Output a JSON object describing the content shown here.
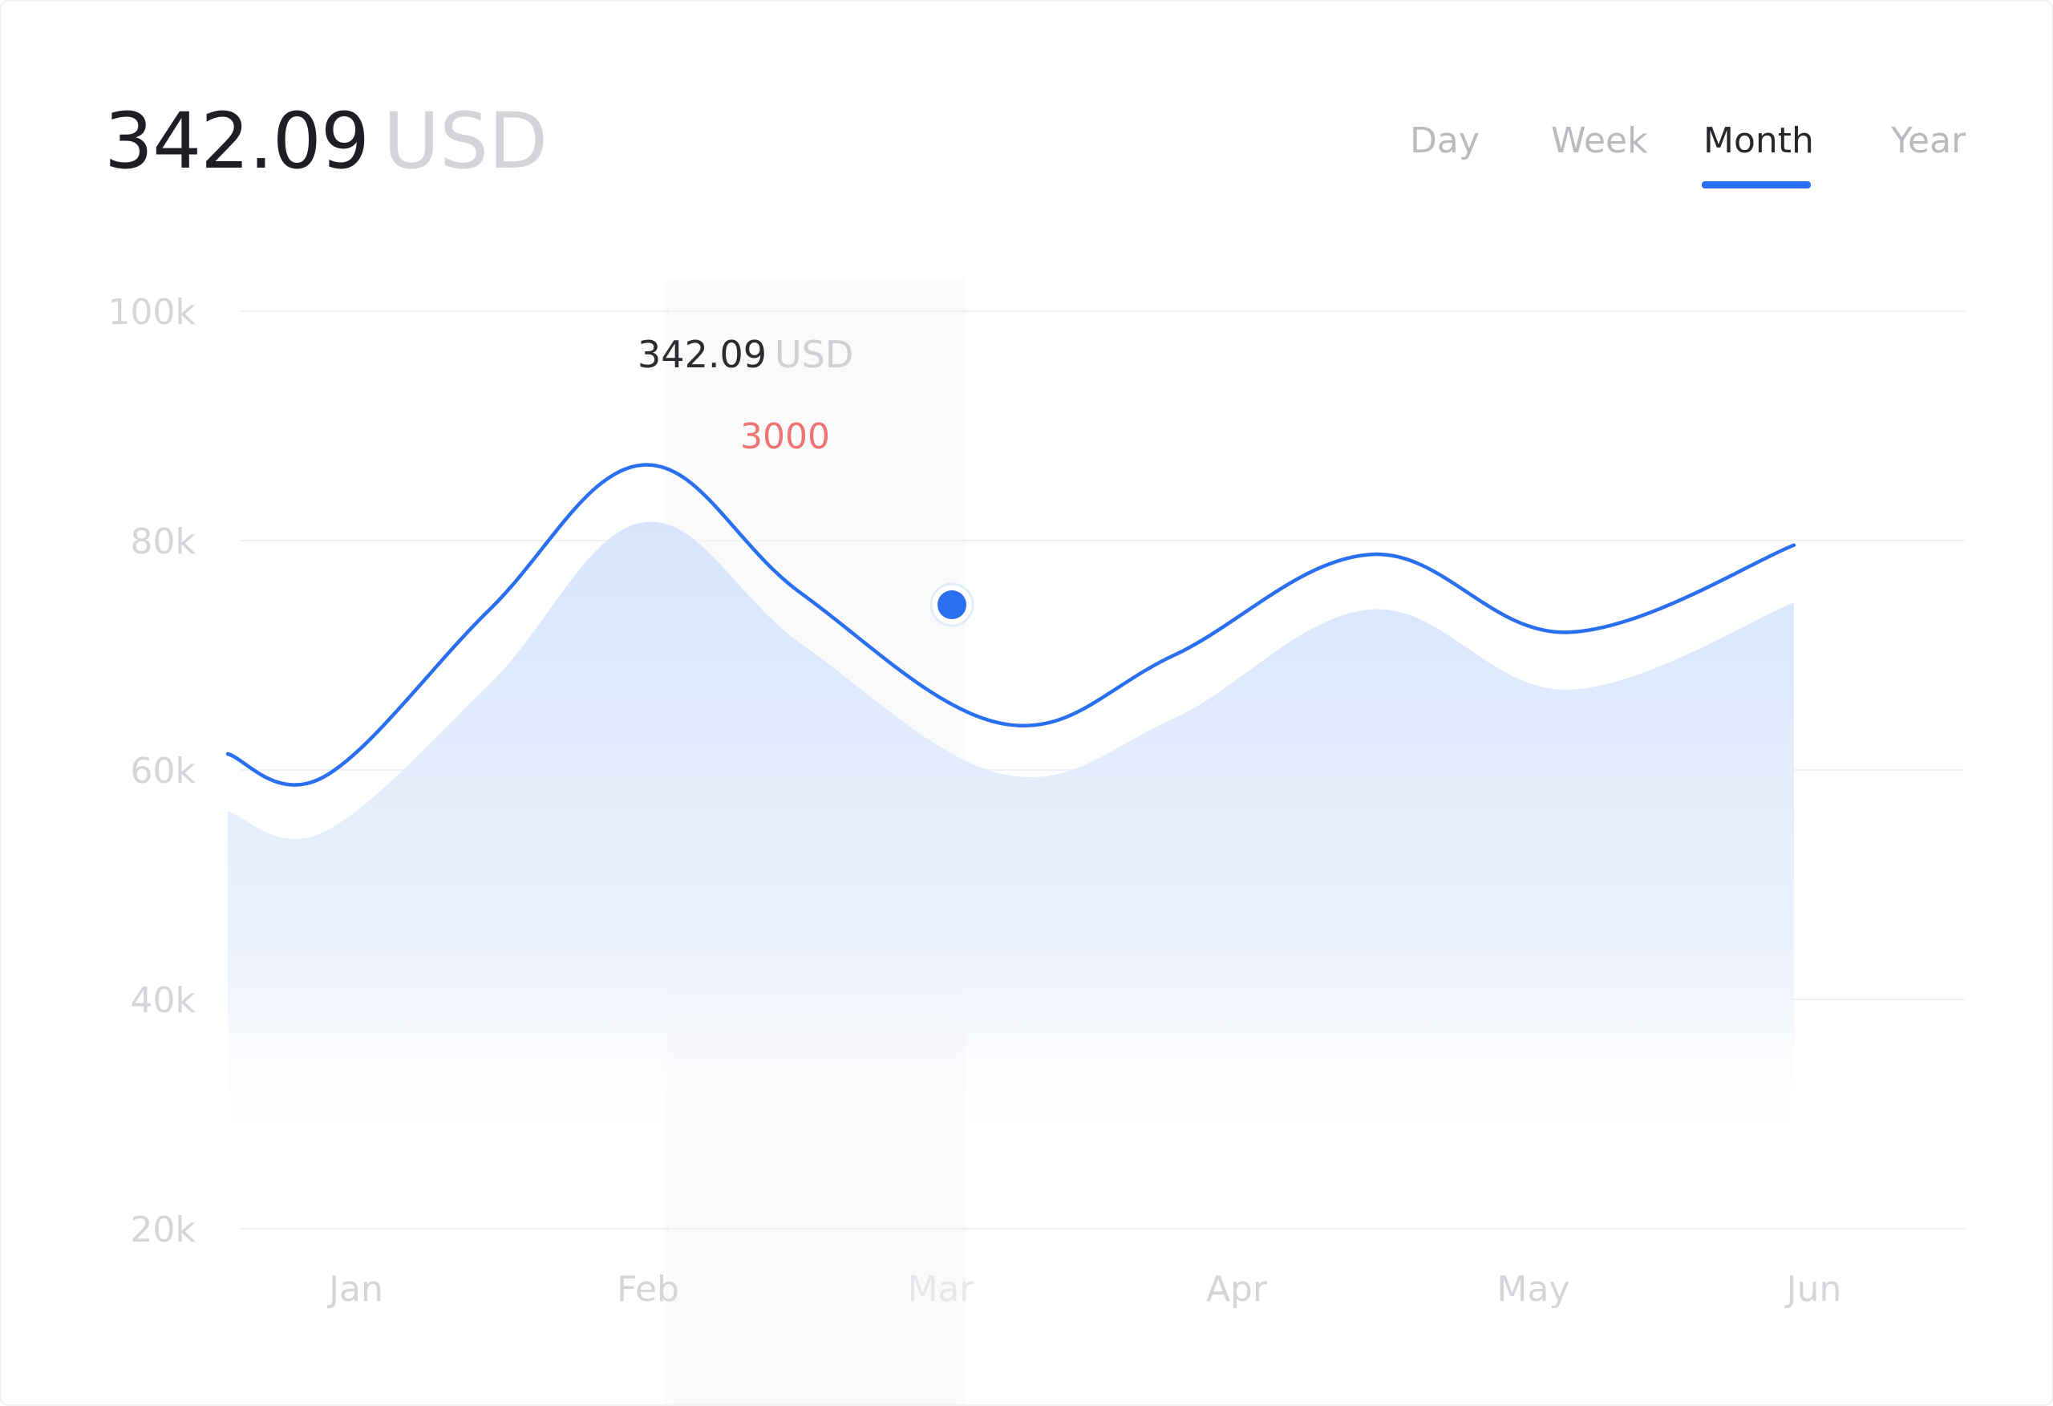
{
  "header": {
    "amount": "342.09",
    "currency": "USD"
  },
  "tabs": [
    {
      "label": "Day",
      "active": false
    },
    {
      "label": "Week",
      "active": false
    },
    {
      "label": "Month",
      "active": true
    },
    {
      "label": "Year",
      "active": false
    }
  ],
  "tooltip": {
    "amount": "342.09",
    "currency": "USD",
    "value": "3000"
  },
  "colors": {
    "accent": "#2a6fef",
    "area": "#dbe8fb",
    "tooltip_value": "#ec7474",
    "grid": "#f0f1f3"
  },
  "chart_data": {
    "type": "area",
    "categories": [
      "Jan",
      "Feb",
      "Mar",
      "Apr",
      "May",
      "Jun"
    ],
    "yticks": [
      "100k",
      "80k",
      "60k",
      "40k",
      "20k"
    ],
    "ylim": [
      20000,
      100000
    ],
    "grid": true,
    "highlighted_category": "Mar",
    "series": [
      {
        "x": [
          0,
          0.33,
          0.9,
          1.43,
          1.97,
          2.67,
          3.25,
          3.93,
          4.6,
          5.38
        ],
        "values": [
          61400,
          59400,
          74000,
          86600,
          75400,
          64000,
          70000,
          78800,
          72000,
          79600
        ]
      },
      {
        "x": [
          0,
          0.33,
          0.9,
          1.43,
          1.97,
          2.67,
          3.25,
          3.93,
          4.6,
          5.38
        ],
        "values": [
          56400,
          54600,
          67500,
          81600,
          71000,
          59600,
          64500,
          74000,
          67000,
          74600
        ]
      }
    ]
  }
}
